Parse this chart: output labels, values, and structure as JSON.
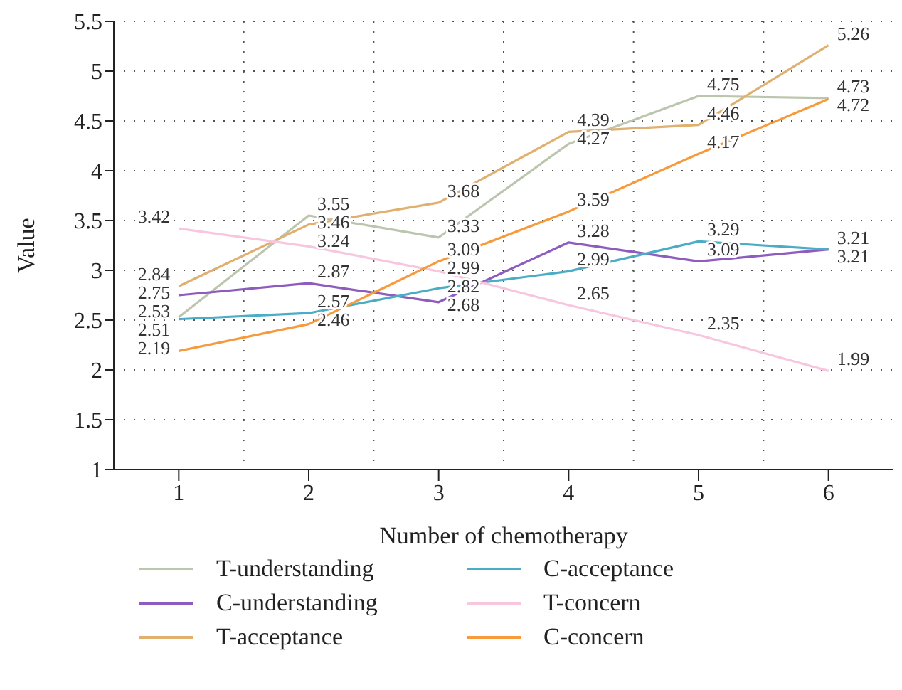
{
  "chart_data": {
    "type": "line",
    "xlabel": "Number of chemotherapy",
    "ylabel": "Value",
    "categories": [
      "1",
      "2",
      "3",
      "4",
      "5",
      "6"
    ],
    "series": [
      {
        "name": "T-understanding",
        "color": "#bcc5ad",
        "values": [
          2.53,
          3.55,
          3.33,
          4.27,
          4.75,
          4.73
        ]
      },
      {
        "name": "C-understanding",
        "color": "#8e5cbf",
        "values": [
          2.75,
          2.87,
          2.68,
          3.28,
          3.09,
          3.21
        ]
      },
      {
        "name": "T-acceptance",
        "color": "#e0b070",
        "values": [
          2.84,
          3.46,
          3.68,
          4.39,
          4.46,
          5.26
        ]
      },
      {
        "name": "C-acceptance",
        "color": "#4bacc6",
        "values": [
          2.51,
          2.57,
          2.82,
          2.99,
          3.29,
          3.21
        ]
      },
      {
        "name": "T-concern",
        "color": "#f7c6df",
        "values": [
          3.42,
          3.24,
          2.99,
          2.65,
          2.35,
          1.99
        ]
      },
      {
        "name": "C-concern",
        "color": "#f79a3c",
        "values": [
          2.19,
          2.46,
          3.09,
          3.59,
          4.17,
          4.72
        ]
      }
    ],
    "ylim": [
      1,
      5.5
    ],
    "yticks": [
      1,
      1.5,
      2,
      2.5,
      3,
      3.5,
      4,
      4.5,
      5,
      5.5
    ],
    "grid": true,
    "legend": "bottom",
    "data_labels": true,
    "marker": "none",
    "line_style": "solid"
  }
}
